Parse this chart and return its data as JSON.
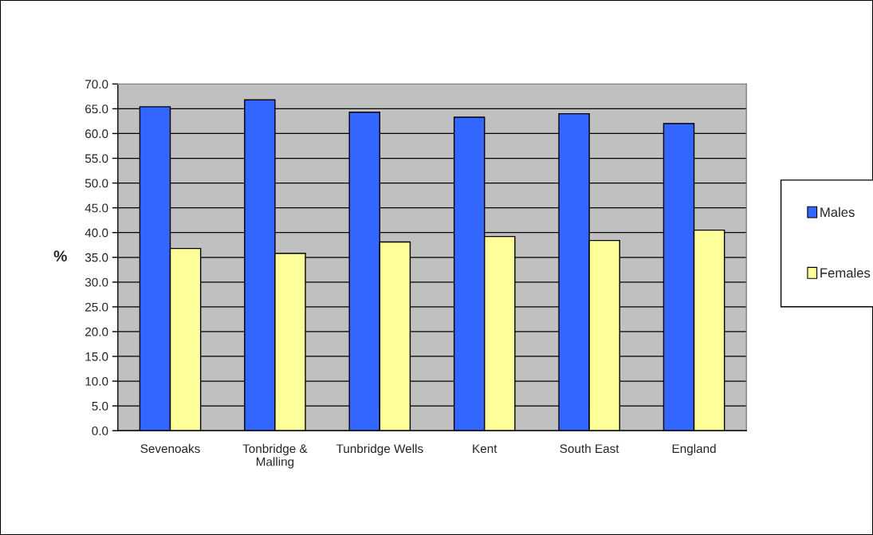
{
  "chart_data": {
    "type": "bar",
    "ylabel": "%",
    "categories": [
      "Sevenoaks",
      "Tonbridge &\nMalling",
      "Tunbridge Wells",
      "Kent",
      "South East",
      "England"
    ],
    "series": [
      {
        "name": "Males",
        "color": "#3366ff",
        "values": [
          65.4,
          66.8,
          64.3,
          63.3,
          64.0,
          62.0
        ]
      },
      {
        "name": "Females",
        "color": "#ffff99",
        "values": [
          36.8,
          35.8,
          38.1,
          39.2,
          38.4,
          40.5
        ]
      }
    ],
    "ylim": [
      0,
      70
    ],
    "yticks": [
      {
        "value": 0,
        "label": "0.0"
      },
      {
        "value": 5,
        "label": "5.0"
      },
      {
        "value": 10,
        "label": "10.0"
      },
      {
        "value": 15,
        "label": "15.0"
      },
      {
        "value": 20,
        "label": "20.0"
      },
      {
        "value": 25,
        "label": "25.0"
      },
      {
        "value": 30,
        "label": "30.0"
      },
      {
        "value": 35,
        "label": "35.0"
      },
      {
        "value": 40,
        "label": "40.0"
      },
      {
        "value": 45,
        "label": "45.0"
      },
      {
        "value": 50,
        "label": "50.0"
      },
      {
        "value": 55,
        "label": "55.0"
      },
      {
        "value": 60,
        "label": "60.0"
      },
      {
        "value": 65,
        "label": "65.0"
      },
      {
        "value": 70,
        "label": "70.0"
      }
    ],
    "grid": "y",
    "legend": "right"
  }
}
